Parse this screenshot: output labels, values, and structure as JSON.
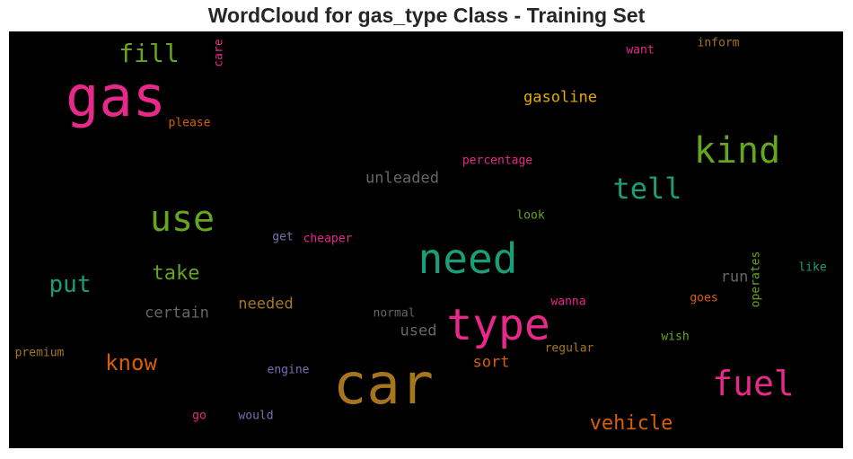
{
  "chart_data": {
    "type": "wordcloud",
    "title": "WordCloud for gas_type Class - Training Set",
    "background": "#000000",
    "words": [
      {
        "text": "car",
        "color": "#a6761d"
      },
      {
        "text": "gas",
        "color": "#e7298a"
      },
      {
        "text": "type",
        "color": "#e7298a"
      },
      {
        "text": "need",
        "color": "#1b9e77"
      },
      {
        "text": "use",
        "color": "#66a61e"
      },
      {
        "text": "kind",
        "color": "#66a61e"
      },
      {
        "text": "fuel",
        "color": "#e7298a"
      },
      {
        "text": "tell",
        "color": "#1b9e77"
      },
      {
        "text": "fill",
        "color": "#66a61e"
      },
      {
        "text": "put",
        "color": "#1b9e77"
      },
      {
        "text": "take",
        "color": "#66a61e"
      },
      {
        "text": "know",
        "color": "#d95f02"
      },
      {
        "text": "vehicle",
        "color": "#d95f02"
      },
      {
        "text": "gasoline",
        "color": "#e6ab02"
      },
      {
        "text": "unleaded",
        "color": "#666666"
      },
      {
        "text": "certain",
        "color": "#666666"
      },
      {
        "text": "needed",
        "color": "#a6761d"
      },
      {
        "text": "run",
        "color": "#666666"
      },
      {
        "text": "used",
        "color": "#666666"
      },
      {
        "text": "sort",
        "color": "#d95f02"
      },
      {
        "text": "percentage",
        "color": "#e7298a"
      },
      {
        "text": "inform",
        "color": "#a6761d"
      },
      {
        "text": "want",
        "color": "#e7298a"
      },
      {
        "text": "care",
        "color": "#e7298a"
      },
      {
        "text": "please",
        "color": "#d95f02"
      },
      {
        "text": "look",
        "color": "#66a61e"
      },
      {
        "text": "get",
        "color": "#7570b3"
      },
      {
        "text": "cheaper",
        "color": "#e7298a"
      },
      {
        "text": "operates",
        "color": "#66a61e"
      },
      {
        "text": "like",
        "color": "#1b9e77"
      },
      {
        "text": "goes",
        "color": "#d95f02"
      },
      {
        "text": "wanna",
        "color": "#e7298a"
      },
      {
        "text": "normal",
        "color": "#666666"
      },
      {
        "text": "regular",
        "color": "#a6761d"
      },
      {
        "text": "wish",
        "color": "#66a61e"
      },
      {
        "text": "premium",
        "color": "#a6761d"
      },
      {
        "text": "engine",
        "color": "#7570b3"
      },
      {
        "text": "go",
        "color": "#e7298a"
      },
      {
        "text": "would",
        "color": "#7570b3"
      }
    ]
  }
}
